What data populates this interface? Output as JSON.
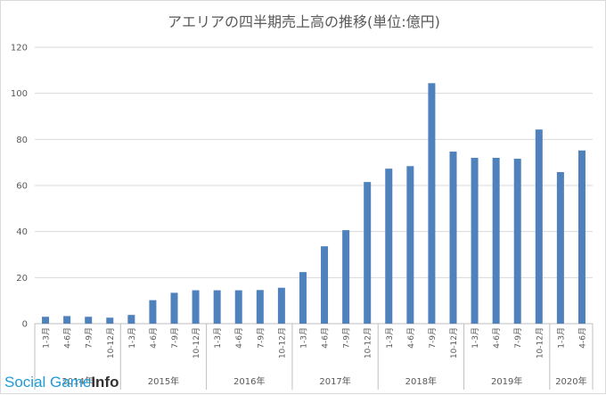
{
  "chart_data": {
    "type": "bar",
    "title": "アエリアの四半期売上高の推移(単位:億円)",
    "ylim": [
      0,
      120
    ],
    "yticks": [
      0,
      20,
      40,
      60,
      80,
      100,
      120
    ],
    "grid": true,
    "legend": "none",
    "bar_color": "#4f81bd",
    "categories": [
      {
        "quarter": "1-3月",
        "year": "2014年"
      },
      {
        "quarter": "4-6月",
        "year": "2014年"
      },
      {
        "quarter": "7-9月",
        "year": "2014年"
      },
      {
        "quarter": "10-12月",
        "year": "2014年"
      },
      {
        "quarter": "1-3月",
        "year": "2015年"
      },
      {
        "quarter": "4-6月",
        "year": "2015年"
      },
      {
        "quarter": "7-9月",
        "year": "2015年"
      },
      {
        "quarter": "10-12月",
        "year": "2015年"
      },
      {
        "quarter": "1-3月",
        "year": "2016年"
      },
      {
        "quarter": "4-6月",
        "year": "2016年"
      },
      {
        "quarter": "7-9月",
        "year": "2016年"
      },
      {
        "quarter": "10-12月",
        "year": "2016年"
      },
      {
        "quarter": "1-3月",
        "year": "2017年"
      },
      {
        "quarter": "4-6月",
        "year": "2017年"
      },
      {
        "quarter": "7-9月",
        "year": "2017年"
      },
      {
        "quarter": "10-12月",
        "year": "2017年"
      },
      {
        "quarter": "1-3月",
        "year": "2018年"
      },
      {
        "quarter": "4-6月",
        "year": "2018年"
      },
      {
        "quarter": "7-9月",
        "year": "2018年"
      },
      {
        "quarter": "10-12月",
        "year": "2018年"
      },
      {
        "quarter": "1-3月",
        "year": "2019年"
      },
      {
        "quarter": "4-6月",
        "year": "2019年"
      },
      {
        "quarter": "7-9月",
        "year": "2019年"
      },
      {
        "quarter": "10-12月",
        "year": "2019年"
      },
      {
        "quarter": "1-3月",
        "year": "2020年"
      },
      {
        "quarter": "4-6月",
        "year": "2020年"
      }
    ],
    "years": [
      "2014年",
      "2015年",
      "2016年",
      "2017年",
      "2018年",
      "2019年",
      "2020年"
    ],
    "values": [
      3.0,
      3.3,
      3.0,
      2.6,
      3.8,
      10.2,
      13.4,
      14.5,
      14.5,
      14.5,
      14.6,
      15.6,
      22.4,
      33.6,
      40.6,
      61.5,
      67.3,
      68.4,
      104.4,
      74.7,
      72.0,
      72.0,
      71.6,
      84.3,
      65.8,
      75.2
    ]
  },
  "watermark": {
    "part_a": "Social Game",
    "part_b": "Info"
  }
}
